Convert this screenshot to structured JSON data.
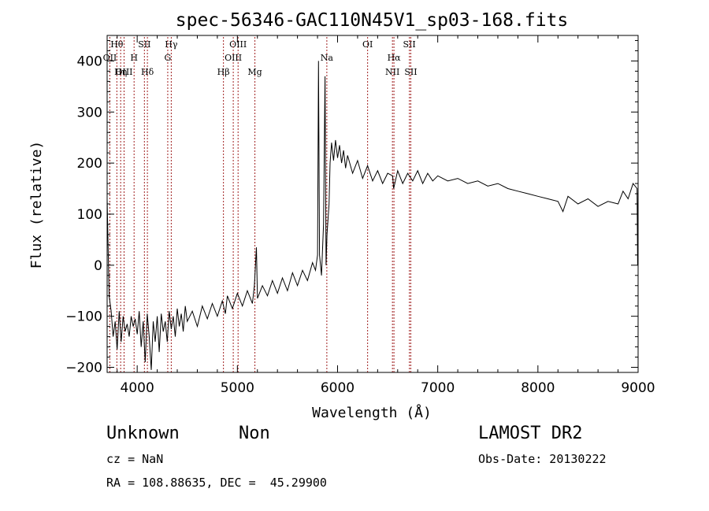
{
  "chart_data": {
    "type": "line",
    "title": "spec-56346-GAC110N45V1_sp03-168.fits",
    "xlabel": "Wavelength (Å)",
    "ylabel": "Flux (relative)",
    "xlim": [
      3700,
      9000
    ],
    "ylim": [
      -210,
      450
    ],
    "xticks": [
      4000,
      5000,
      6000,
      7000,
      8000,
      9000
    ],
    "yticks": [
      -200,
      -100,
      0,
      100,
      200,
      300,
      400
    ],
    "grid": false,
    "series": [
      {
        "points": [
          [
            3700,
            130
          ],
          [
            3720,
            -60
          ],
          [
            3740,
            -90
          ],
          [
            3760,
            -140
          ],
          [
            3780,
            -110
          ],
          [
            3800,
            -165
          ],
          [
            3820,
            -90
          ],
          [
            3840,
            -150
          ],
          [
            3860,
            -100
          ],
          [
            3880,
            -130
          ],
          [
            3900,
            -115
          ],
          [
            3920,
            -140
          ],
          [
            3940,
            -100
          ],
          [
            3960,
            -120
          ],
          [
            3980,
            -105
          ],
          [
            4000,
            -135
          ],
          [
            4020,
            -90
          ],
          [
            4040,
            -160
          ],
          [
            4060,
            -110
          ],
          [
            4080,
            -190
          ],
          [
            4100,
            -95
          ],
          [
            4120,
            -140
          ],
          [
            4140,
            -205
          ],
          [
            4160,
            -110
          ],
          [
            4180,
            -150
          ],
          [
            4200,
            -100
          ],
          [
            4220,
            -170
          ],
          [
            4240,
            -95
          ],
          [
            4260,
            -130
          ],
          [
            4280,
            -110
          ],
          [
            4300,
            -150
          ],
          [
            4320,
            -90
          ],
          [
            4340,
            -125
          ],
          [
            4360,
            -100
          ],
          [
            4380,
            -140
          ],
          [
            4400,
            -85
          ],
          [
            4420,
            -120
          ],
          [
            4440,
            -95
          ],
          [
            4460,
            -130
          ],
          [
            4480,
            -80
          ],
          [
            4500,
            -110
          ],
          [
            4550,
            -90
          ],
          [
            4600,
            -120
          ],
          [
            4650,
            -80
          ],
          [
            4700,
            -105
          ],
          [
            4750,
            -75
          ],
          [
            4800,
            -100
          ],
          [
            4850,
            -70
          ],
          [
            4880,
            -95
          ],
          [
            4900,
            -60
          ],
          [
            4950,
            -85
          ],
          [
            5000,
            -55
          ],
          [
            5050,
            -80
          ],
          [
            5100,
            -50
          ],
          [
            5150,
            -75
          ],
          [
            5170,
            -40
          ],
          [
            5190,
            35
          ],
          [
            5200,
            -65
          ],
          [
            5250,
            -40
          ],
          [
            5300,
            -60
          ],
          [
            5350,
            -30
          ],
          [
            5400,
            -55
          ],
          [
            5450,
            -25
          ],
          [
            5500,
            -50
          ],
          [
            5550,
            -15
          ],
          [
            5600,
            -40
          ],
          [
            5650,
            -10
          ],
          [
            5700,
            -30
          ],
          [
            5750,
            5
          ],
          [
            5780,
            -10
          ],
          [
            5800,
            20
          ],
          [
            5810,
            400
          ],
          [
            5820,
            20
          ],
          [
            5840,
            -20
          ],
          [
            5860,
            80
          ],
          [
            5875,
            370
          ],
          [
            5885,
            0
          ],
          [
            5895,
            60
          ],
          [
            5905,
            90
          ],
          [
            5915,
            120
          ],
          [
            5925,
            200
          ],
          [
            5940,
            240
          ],
          [
            5960,
            205
          ],
          [
            5980,
            245
          ],
          [
            6000,
            210
          ],
          [
            6020,
            235
          ],
          [
            6040,
            200
          ],
          [
            6060,
            225
          ],
          [
            6080,
            190
          ],
          [
            6100,
            215
          ],
          [
            6150,
            180
          ],
          [
            6200,
            205
          ],
          [
            6250,
            170
          ],
          [
            6300,
            195
          ],
          [
            6350,
            165
          ],
          [
            6400,
            185
          ],
          [
            6450,
            160
          ],
          [
            6500,
            180
          ],
          [
            6550,
            175
          ],
          [
            6560,
            150
          ],
          [
            6600,
            185
          ],
          [
            6650,
            160
          ],
          [
            6700,
            180
          ],
          [
            6750,
            165
          ],
          [
            6800,
            185
          ],
          [
            6850,
            160
          ],
          [
            6900,
            180
          ],
          [
            6950,
            165
          ],
          [
            7000,
            175
          ],
          [
            7100,
            165
          ],
          [
            7200,
            170
          ],
          [
            7300,
            160
          ],
          [
            7400,
            165
          ],
          [
            7500,
            155
          ],
          [
            7600,
            160
          ],
          [
            7700,
            150
          ],
          [
            7800,
            145
          ],
          [
            7900,
            140
          ],
          [
            8000,
            135
          ],
          [
            8100,
            130
          ],
          [
            8200,
            125
          ],
          [
            8250,
            105
          ],
          [
            8300,
            135
          ],
          [
            8400,
            120
          ],
          [
            8500,
            130
          ],
          [
            8600,
            115
          ],
          [
            8700,
            125
          ],
          [
            8800,
            120
          ],
          [
            8850,
            145
          ],
          [
            8900,
            130
          ],
          [
            8950,
            160
          ],
          [
            8990,
            150
          ],
          [
            8995,
            0
          ],
          [
            9000,
            150
          ]
        ]
      }
    ],
    "lines": [
      {
        "label": "Hθ",
        "x": 3797,
        "row": 0
      },
      {
        "label": "OII",
        "x": 3727,
        "row": 1
      },
      {
        "label": "OIII",
        "x": 3869,
        "row": 2
      },
      {
        "label": "Hη",
        "x": 3835,
        "row": 2
      },
      {
        "label": "H",
        "x": 3969,
        "row": 1
      },
      {
        "label": "SII",
        "x": 4072,
        "row": 0
      },
      {
        "label": "Hδ",
        "x": 4102,
        "row": 2
      },
      {
        "label": "Hγ",
        "x": 4340,
        "row": 0
      },
      {
        "label": "G",
        "x": 4305,
        "row": 1
      },
      {
        "label": "OIII",
        "x": 5007,
        "row": 0
      },
      {
        "label": "OIII",
        "x": 4959,
        "row": 1
      },
      {
        "label": "Hβ",
        "x": 4861,
        "row": 2
      },
      {
        "label": "Mg",
        "x": 5175,
        "row": 2
      },
      {
        "label": "Na",
        "x": 5893,
        "row": 1
      },
      {
        "label": "OI",
        "x": 6300,
        "row": 0
      },
      {
        "label": "Hα",
        "x": 6563,
        "row": 1
      },
      {
        "label": "NII",
        "x": 6548,
        "row": 2
      },
      {
        "label": "SII",
        "x": 6717,
        "row": 0
      },
      {
        "label": "SII",
        "x": 6731,
        "row": 2
      }
    ]
  },
  "info": {
    "class": "Unknown",
    "subclass": "Non",
    "survey": "LAMOST DR2",
    "cz": "cz = NaN",
    "obsdate": "Obs-Date: 20130222",
    "radec": "RA = 108.88635, DEC =  45.29900"
  }
}
